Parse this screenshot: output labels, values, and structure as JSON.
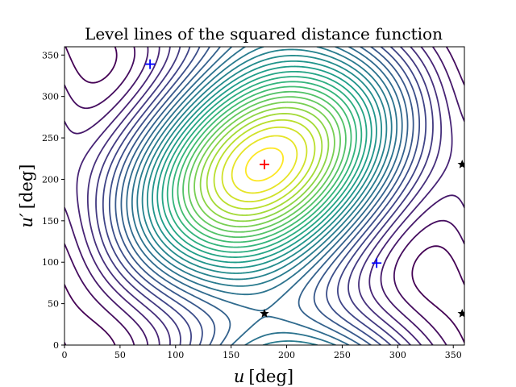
{
  "chart_data": {
    "type": "contour",
    "title": "Level lines of the squared distance function",
    "xlabel_symbol": "u",
    "xlabel_unit": "[deg]",
    "ylabel_symbol": "u′",
    "ylabel_unit": "[deg]",
    "xlim": [
      0,
      360
    ],
    "ylim": [
      0,
      360
    ],
    "xticks": [
      0,
      50,
      100,
      150,
      200,
      250,
      300,
      350
    ],
    "yticks": [
      0,
      50,
      100,
      150,
      200,
      250,
      300,
      350
    ],
    "grid": false,
    "colormap": "viridis",
    "contour_levels": 30,
    "field": {
      "maximum": [
        180,
        218
      ],
      "local_minima": [
        [
          77,
          339
        ],
        [
          281,
          99
        ]
      ],
      "saddle_points": [
        [
          180,
          38
        ],
        [
          358,
          38
        ],
        [
          358,
          218
        ]
      ]
    },
    "markers": [
      {
        "kind": "plus",
        "color": "#ff0000",
        "x": 180,
        "y": 218
      },
      {
        "kind": "plus",
        "color": "#0000ff",
        "x": 77,
        "y": 339
      },
      {
        "kind": "plus",
        "color": "#0000ff",
        "x": 281,
        "y": 99
      },
      {
        "kind": "star",
        "color": "#000000",
        "x": 180,
        "y": 38
      },
      {
        "kind": "star",
        "color": "#000000",
        "x": 358,
        "y": 38
      },
      {
        "kind": "star",
        "color": "#000000",
        "x": 358,
        "y": 218
      }
    ]
  }
}
